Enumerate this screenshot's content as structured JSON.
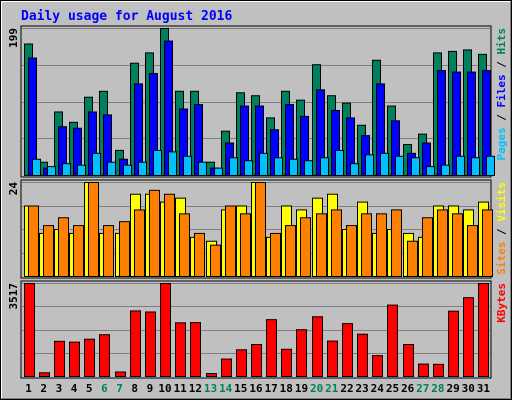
{
  "chart_data": {
    "type": "bar",
    "title": "Daily usage for August 2016",
    "categories": [
      "1",
      "2",
      "3",
      "4",
      "5",
      "6",
      "7",
      "8",
      "9",
      "10",
      "11",
      "12",
      "13",
      "14",
      "15",
      "16",
      "17",
      "18",
      "19",
      "20",
      "21",
      "22",
      "23",
      "24",
      "25",
      "26",
      "27",
      "28",
      "29",
      "30",
      "31"
    ],
    "weekend_days": [
      "6",
      "7",
      "13",
      "14",
      "20",
      "21",
      "27",
      "28"
    ],
    "grid": true,
    "colors": {
      "background": "#C0C0C0",
      "frame": "#E0E0E0",
      "title": "#0000FF",
      "hits": "#00805C",
      "files": "#0000FF",
      "pages": "#00C0FF",
      "visits": "#FFFF00",
      "sites": "#FF8000",
      "kbytes": "#FF0000",
      "weekday_label": "#000000",
      "weekend_label": "#00805C"
    },
    "panels": [
      {
        "id": "hits",
        "ymax_label": "199",
        "ylim": [
          0,
          199
        ],
        "legend": [
          {
            "text": "Pages",
            "color": "#00C0FF"
          },
          {
            "text": " / ",
            "color": "#000000"
          },
          {
            "text": "Files",
            "color": "#0000FF"
          },
          {
            "text": " / ",
            "color": "#000000"
          },
          {
            "text": "Hits",
            "color": "#00805C"
          }
        ],
        "series": [
          {
            "name": "Hits",
            "color": "#00805C",
            "values": [
              178,
              18,
              86,
              72,
              106,
              114,
              34,
              152,
              166,
              199,
              114,
              114,
              18,
              60,
              112,
              108,
              78,
              114,
              102,
              150,
              108,
              98,
              68,
              156,
              94,
              42,
              56,
              166,
              168,
              170,
              164
            ]
          },
          {
            "name": "Files",
            "color": "#0000FF",
            "values": [
              159,
              10,
              66,
              64,
              86,
              82,
              22,
              124,
              138,
              182,
              90,
              96,
              10,
              44,
              94,
              94,
              62,
              96,
              80,
              116,
              88,
              78,
              54,
              124,
              74,
              30,
              44,
              142,
              140,
              140,
              142
            ]
          },
          {
            "name": "Pages",
            "color": "#00C0FF",
            "values": [
              22,
              12,
              16,
              14,
              30,
              18,
              14,
              18,
              34,
              32,
              26,
              18,
              10,
              24,
              20,
              30,
              24,
              22,
              20,
              24,
              34,
              16,
              28,
              30,
              26,
              24,
              12,
              14,
              26,
              24,
              26
            ]
          }
        ]
      },
      {
        "id": "visits",
        "ymax_label": "24",
        "ylim": [
          0,
          24
        ],
        "legend": [
          {
            "text": "Sites",
            "color": "#FF8000"
          },
          {
            "text": " / ",
            "color": "#000000"
          },
          {
            "text": "Visits",
            "color": "#FFFF00"
          }
        ],
        "series": [
          {
            "name": "Visits",
            "color": "#FFFF00",
            "values": [
              18,
              11,
              12,
              11,
              24,
              11,
              11,
              21,
              21,
              19,
              20,
              10,
              9,
              17,
              18,
              24,
              10,
              18,
              17,
              20,
              21,
              12,
              19,
              11,
              12,
              11,
              10,
              18,
              18,
              17,
              19
            ]
          },
          {
            "name": "Sites",
            "color": "#FF8000",
            "values": [
              18,
              13,
              15,
              13,
              24,
              13,
              14,
              17,
              22,
              21,
              16,
              11,
              8,
              18,
              16,
              24,
              11,
              13,
              15,
              16,
              17,
              13,
              16,
              16,
              17,
              9,
              15,
              17,
              16,
              13,
              17
            ]
          }
        ]
      },
      {
        "id": "kbytes",
        "ymax_label": "3517",
        "ylim": [
          0,
          3517
        ],
        "legend": [
          {
            "text": "KBytes",
            "color": "#FF0000"
          }
        ],
        "series": [
          {
            "name": "KBytes",
            "color": "#FF0000",
            "values": [
              3517,
              140,
              1330,
              1300,
              1410,
              1580,
              170,
              2480,
              2440,
              3517,
              2030,
              2040,
              110,
              660,
              1010,
              1210,
              2150,
              1030,
              1770,
              2260,
              1340,
              2000,
              1600,
              790,
              2700,
              1210,
              470,
              460,
              2470,
              2980,
              3517
            ]
          }
        ]
      }
    ]
  }
}
